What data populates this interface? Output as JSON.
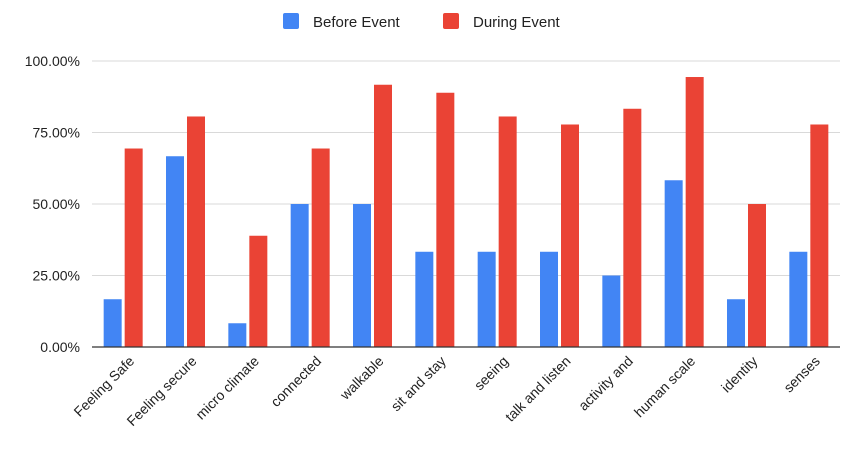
{
  "chart_data": {
    "type": "bar",
    "title": "",
    "xlabel": "",
    "ylabel": "",
    "categories": [
      "Feeling Safe",
      "Feeling secure",
      "micro climate",
      "connected",
      "walkable",
      "sit and stay",
      "seeing",
      "talk and listen",
      "activity and",
      "human scale",
      "identity",
      "senses"
    ],
    "series": [
      {
        "name": "Before Event",
        "color": "#4285f4",
        "values": [
          0.167,
          0.667,
          0.083,
          0.5,
          0.5,
          0.333,
          0.333,
          0.333,
          0.25,
          0.583,
          0.167,
          0.333
        ]
      },
      {
        "name": "During Event",
        "color": "#ea4335",
        "values": [
          0.694,
          0.806,
          0.389,
          0.694,
          0.917,
          0.889,
          0.806,
          0.778,
          0.833,
          0.944,
          0.5,
          0.778
        ]
      }
    ],
    "ylim": [
      0,
      1
    ],
    "yticks": [
      0,
      0.25,
      0.5,
      0.75,
      1
    ],
    "ytick_labels": [
      "0.00%",
      "25.00%",
      "50.00%",
      "75.00%",
      "100.00%"
    ],
    "grid": true,
    "legend_position": "top-center"
  }
}
